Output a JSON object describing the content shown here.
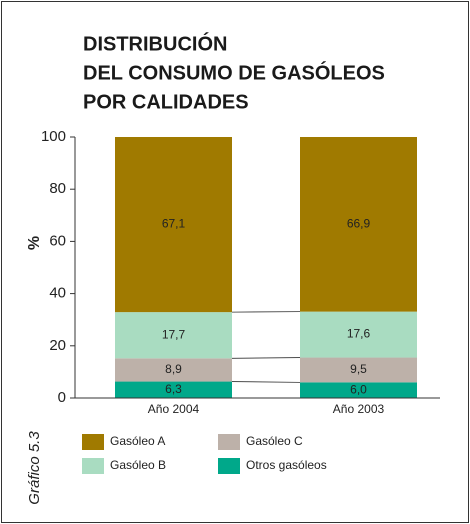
{
  "chart_data": {
    "type": "stacked_bar",
    "title": [
      "DISTRIBUCIÓN",
      "DEL CONSUMO DE GASÓLEOS",
      "POR CALIDADES"
    ],
    "y_label": "%",
    "caption": "Gráfico 5.3",
    "categories": [
      "Año 2004",
      "Año 2003"
    ],
    "series": [
      {
        "name": "Gasóleo A",
        "color": "#a07a00",
        "values": [
          67.1,
          66.9
        ],
        "value_labels": [
          "67,1",
          "66,9"
        ]
      },
      {
        "name": "Gasóleo B",
        "color": "#a9dcc1",
        "values": [
          17.7,
          17.6
        ],
        "value_labels": [
          "17,7",
          "17,6"
        ]
      },
      {
        "name": "Gasóleo C",
        "color": "#bdb1a9",
        "values": [
          8.9,
          9.5
        ],
        "value_labels": [
          "8,9",
          "9,5"
        ]
      },
      {
        "name": "Otros gasóleos",
        "color": "#00a88a",
        "values": [
          6.3,
          6.0
        ],
        "value_labels": [
          "6,3",
          "6,0"
        ]
      }
    ],
    "ylim": [
      0,
      100
    ],
    "yticks": [
      0,
      20,
      40,
      60,
      80,
      100
    ],
    "grid": false
  }
}
